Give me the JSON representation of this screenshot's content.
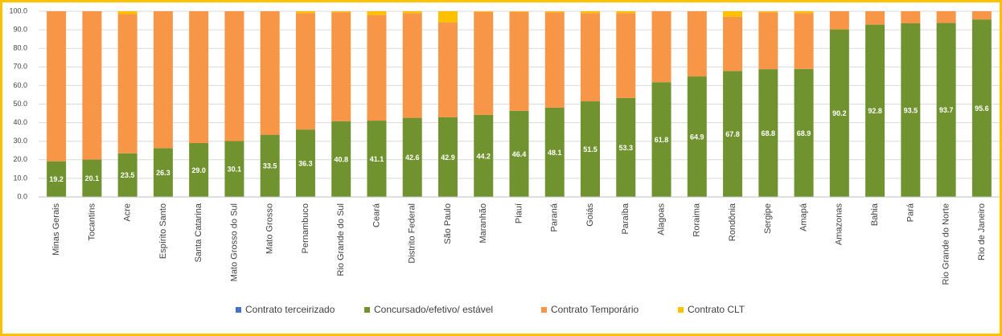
{
  "chart_data": {
    "type": "stacked_bar",
    "categories": [
      "Minas Gerais",
      "Tocantins",
      "Acre",
      "Espírito Santo",
      "Santa Catarina",
      "Mato Grosso do Sul",
      "Mato Grosso",
      "Pernambuco",
      "Rio Grande do Sul",
      "Ceará",
      "Distrito Federal",
      "São Paulo",
      "Maranhão",
      "Piauí",
      "Paraná",
      "Goiás",
      "Paraíba",
      "Alagoas",
      "Roraima",
      "Rondônia",
      "Sergipe",
      "Amapá",
      "Amazonas",
      "Bahia",
      "Pará",
      "Rio Grande do Norte",
      "Rio de Janeiro"
    ],
    "series": [
      {
        "name": "Contrato terceirizado",
        "color": "#4472c4",
        "values": [
          0,
          0,
          0,
          0,
          0,
          0,
          0,
          0,
          0,
          0,
          0,
          0,
          0,
          0,
          0,
          0,
          0,
          0,
          0,
          0,
          0,
          0,
          0,
          0,
          0,
          0,
          0
        ]
      },
      {
        "name": "Concursado/efetivo/ estável",
        "color": "#70932f",
        "values": [
          19.2,
          20.1,
          23.5,
          26.3,
          29.0,
          30.1,
          33.5,
          36.3,
          40.8,
          41.1,
          42.6,
          42.9,
          44.2,
          46.4,
          48.1,
          51.5,
          53.3,
          61.8,
          64.9,
          67.8,
          68.8,
          68.9,
          90.2,
          92.8,
          93.5,
          93.7,
          95.6
        ],
        "value_labels": [
          "19.2",
          "20.1",
          "23.5",
          "26.3",
          "29.0",
          "30.1",
          "33.5",
          "36.3",
          "40.8",
          "41.1",
          "42.6",
          "42.9",
          "44.2",
          "46.4",
          "48.1",
          "51.5",
          "53.3",
          "61.8",
          "64.9",
          "67.8",
          "68.8",
          "68.9",
          "90.2",
          "92.8",
          "93.5",
          "93.7",
          "95.6"
        ]
      },
      {
        "name": "Contrato Temporário",
        "color": "#f79646",
        "values": [
          80.8,
          79.9,
          75.0,
          73.7,
          71.0,
          69.9,
          66.5,
          62.7,
          58.7,
          56.9,
          56.4,
          51.1,
          55.5,
          53.3,
          51.4,
          47.5,
          45.7,
          38.2,
          35.1,
          29.2,
          30.7,
          30.1,
          9.8,
          7.2,
          6.5,
          6.3,
          4.4
        ]
      },
      {
        "name": "Contrato CLT",
        "color": "#ffc000",
        "values": [
          0,
          0,
          1.5,
          0,
          0,
          0,
          0,
          1,
          0.5,
          2,
          1,
          6,
          0.3,
          0.3,
          0.5,
          1,
          1,
          0,
          0,
          3,
          0.5,
          1,
          0,
          0,
          0,
          0,
          0
        ]
      }
    ],
    "ylim": [
      0,
      100
    ],
    "yticks": [
      {
        "value": 0,
        "label": "0.0"
      },
      {
        "value": 10,
        "label": "10.0"
      },
      {
        "value": 20,
        "label": "20.0"
      },
      {
        "value": 30,
        "label": "30.0"
      },
      {
        "value": 40,
        "label": "40.0"
      },
      {
        "value": 50,
        "label": "50.0"
      },
      {
        "value": 60,
        "label": "60.0"
      },
      {
        "value": 70,
        "label": "70.0"
      },
      {
        "value": 80,
        "label": "80.0"
      },
      {
        "value": 90,
        "label": "90.0"
      },
      {
        "value": 100,
        "label": "100.0"
      }
    ],
    "grid": true,
    "legend": "bottom"
  }
}
